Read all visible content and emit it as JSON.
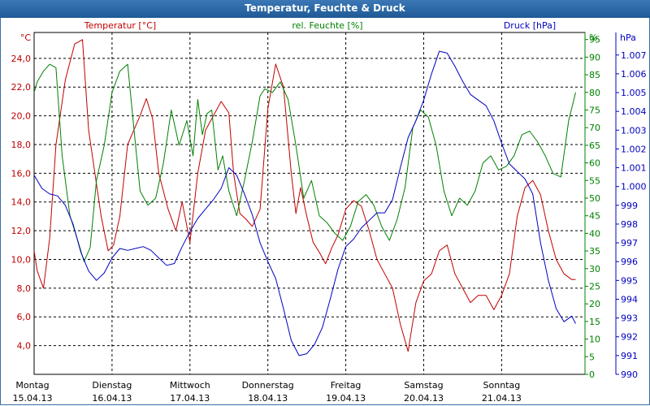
{
  "window": {
    "title": "Temperatur, Feuchte & Druck"
  },
  "chart_data": {
    "type": "line",
    "title": "Temperatur, Feuchte & Druck",
    "legend": "top",
    "grid": true,
    "axes": {
      "temperature": {
        "label": "Temperatur [°C]",
        "unit": "°C",
        "range": [
          2.0,
          25.8
        ],
        "color": "#c00000",
        "ticks": [
          "4,0",
          "6,0",
          "8,0",
          "10,0",
          "12,0",
          "14,0",
          "16,0",
          "18,0",
          "20,0",
          "22,0",
          "24,0"
        ]
      },
      "humidity": {
        "label": "rel. Feuchte [%]",
        "unit": "%",
        "range": [
          0,
          97
        ],
        "color": "#008000",
        "ticks": [
          "0",
          "5",
          "10",
          "15",
          "20",
          "25",
          "30",
          "35",
          "40",
          "45",
          "50",
          "55",
          "60",
          "65",
          "70",
          "75",
          "80",
          "85",
          "90",
          "95"
        ]
      },
      "pressure": {
        "label": "Druck [hPa]",
        "unit": "hPa",
        "range": [
          990,
          1008.2
        ],
        "color": "#0000c0",
        "ticks": [
          "990",
          "991",
          "992",
          "993",
          "994",
          "995",
          "996",
          "997",
          "998",
          "999",
          "1.000",
          "1.001",
          "1.002",
          "1.003",
          "1.004",
          "1.005",
          "1.006",
          "1.007"
        ]
      }
    },
    "x_range": [
      0,
      7.07
    ],
    "x_ticks": [
      {
        "day": "Montag",
        "date": "15.04.13"
      },
      {
        "day": "Dienstag",
        "date": "16.04.13"
      },
      {
        "day": "Mittwoch",
        "date": "17.04.13"
      },
      {
        "day": "Donnerstag",
        "date": "18.04.13"
      },
      {
        "day": "Freitag",
        "date": "19.04.13"
      },
      {
        "day": "Samstag",
        "date": "20.04.13"
      },
      {
        "day": "Sonntag",
        "date": "21.04.13"
      }
    ],
    "series": [
      {
        "name": "Temperatur",
        "axis": "temperature",
        "color": "#c00000",
        "x": [
          0,
          0.04,
          0.12,
          0.2,
          0.28,
          0.4,
          0.52,
          0.62,
          0.7,
          0.78,
          0.86,
          0.95,
          1.02,
          1.1,
          1.2,
          1.28,
          1.36,
          1.44,
          1.52,
          1.6,
          1.72,
          1.82,
          1.9,
          2.0,
          2.1,
          2.2,
          2.3,
          2.4,
          2.5,
          2.56,
          2.64,
          2.72,
          2.8,
          2.9,
          3.0,
          3.1,
          3.2,
          3.3,
          3.36,
          3.42,
          3.5,
          3.58,
          3.66,
          3.74,
          3.82,
          3.9,
          4.0,
          4.1,
          4.2,
          4.3,
          4.4,
          4.5,
          4.6,
          4.7,
          4.8,
          4.9,
          5.0,
          5.1,
          5.2,
          5.3,
          5.4,
          5.5,
          5.6,
          5.7,
          5.8,
          5.9,
          6.0,
          6.1,
          6.2,
          6.3,
          6.4,
          6.5,
          6.6,
          6.7,
          6.8,
          6.9,
          6.95
        ],
        "values": [
          10.6,
          9.2,
          8.0,
          11.5,
          18.0,
          22.5,
          25.0,
          25.3,
          19.0,
          16.0,
          13.0,
          10.6,
          11.0,
          13.0,
          18.0,
          19.0,
          20.0,
          21.2,
          19.8,
          16.0,
          13.5,
          12.0,
          14.0,
          11.2,
          16.0,
          19.0,
          20.0,
          21.0,
          20.2,
          16.0,
          13.2,
          12.8,
          12.3,
          13.5,
          20.5,
          23.6,
          22.0,
          16.0,
          13.2,
          15.0,
          13.0,
          11.2,
          10.5,
          9.7,
          10.8,
          11.7,
          13.5,
          14.1,
          13.7,
          12.0,
          10.0,
          9.0,
          8.0,
          5.5,
          3.6,
          7.0,
          8.5,
          9.0,
          10.6,
          11.0,
          9.0,
          8.0,
          7.0,
          7.5,
          7.5,
          6.5,
          7.5,
          9.0,
          13.0,
          15.0,
          15.5,
          14.5,
          12.0,
          10.0,
          9.0,
          8.6,
          8.6
        ]
      },
      {
        "name": "rel. Feuchte",
        "axis": "humidity",
        "color": "#008000",
        "x": [
          0,
          0.04,
          0.12,
          0.2,
          0.28,
          0.36,
          0.46,
          0.56,
          0.64,
          0.72,
          0.8,
          0.9,
          1.0,
          1.1,
          1.2,
          1.28,
          1.36,
          1.46,
          1.56,
          1.66,
          1.76,
          1.86,
          1.96,
          2.04,
          2.1,
          2.16,
          2.22,
          2.28,
          2.36,
          2.42,
          2.5,
          2.6,
          2.7,
          2.8,
          2.9,
          2.96,
          3.06,
          3.16,
          3.26,
          3.36,
          3.46,
          3.56,
          3.66,
          3.76,
          3.86,
          3.96,
          4.06,
          4.16,
          4.26,
          4.36,
          4.46,
          4.56,
          4.66,
          4.76,
          4.86,
          4.96,
          5.06,
          5.16,
          5.26,
          5.36,
          5.46,
          5.56,
          5.66,
          5.76,
          5.86,
          5.96,
          6.06,
          6.16,
          6.26,
          6.36,
          6.46,
          6.56,
          6.66,
          6.76,
          6.86,
          6.95
        ],
        "values": [
          80,
          83,
          86,
          88,
          87,
          62,
          45,
          38,
          32,
          36,
          55,
          65,
          80,
          86,
          88,
          70,
          52,
          48,
          50,
          60,
          75,
          65,
          72,
          62,
          78,
          68,
          74,
          75,
          58,
          62,
          52,
          45,
          55,
          66,
          79,
          81,
          80,
          83,
          78,
          65,
          50,
          55,
          45,
          43,
          40,
          38,
          42,
          49,
          51,
          48,
          42,
          38,
          44,
          53,
          70,
          75,
          73,
          65,
          52,
          45,
          50,
          48,
          52,
          60,
          62,
          58,
          59,
          62,
          68,
          69,
          66,
          62,
          57,
          56,
          72,
          80
        ]
      },
      {
        "name": "Druck",
        "axis": "pressure",
        "color": "#0000c0",
        "x": [
          0,
          0.1,
          0.2,
          0.3,
          0.4,
          0.5,
          0.6,
          0.7,
          0.8,
          0.9,
          1.0,
          1.1,
          1.2,
          1.3,
          1.4,
          1.5,
          1.6,
          1.7,
          1.8,
          1.9,
          2.0,
          2.1,
          2.2,
          2.3,
          2.4,
          2.5,
          2.6,
          2.7,
          2.8,
          2.9,
          3.0,
          3.1,
          3.2,
          3.3,
          3.4,
          3.5,
          3.6,
          3.7,
          3.8,
          3.9,
          4.0,
          4.1,
          4.2,
          4.3,
          4.4,
          4.5,
          4.6,
          4.7,
          4.8,
          4.9,
          5.0,
          5.1,
          5.2,
          5.3,
          5.4,
          5.5,
          5.6,
          5.7,
          5.8,
          5.9,
          6.0,
          6.1,
          6.2,
          6.3,
          6.4,
          6.5,
          6.6,
          6.7,
          6.8,
          6.9,
          6.95
        ],
        "values": [
          1000.6,
          999.9,
          999.6,
          999.5,
          999.0,
          998.0,
          996.5,
          995.5,
          995.0,
          995.4,
          996.2,
          996.7,
          996.6,
          996.7,
          996.8,
          996.6,
          996.2,
          995.8,
          995.9,
          996.8,
          997.6,
          998.3,
          998.8,
          999.3,
          999.9,
          1001.0,
          1000.6,
          999.6,
          998.5,
          997.0,
          996.0,
          995.1,
          993.5,
          991.8,
          991.0,
          991.1,
          991.6,
          992.5,
          994.0,
          995.6,
          996.8,
          997.2,
          997.8,
          998.2,
          998.6,
          998.6,
          999.3,
          1001.0,
          1002.6,
          1003.5,
          1004.6,
          1006.0,
          1007.2,
          1007.1,
          1006.4,
          1005.6,
          1004.9,
          1004.6,
          1004.3,
          1003.5,
          1002.3,
          1001.2,
          1000.8,
          1000.4,
          999.6,
          997.0,
          995.0,
          993.5,
          992.8,
          993.1,
          992.7
        ]
      }
    ]
  }
}
